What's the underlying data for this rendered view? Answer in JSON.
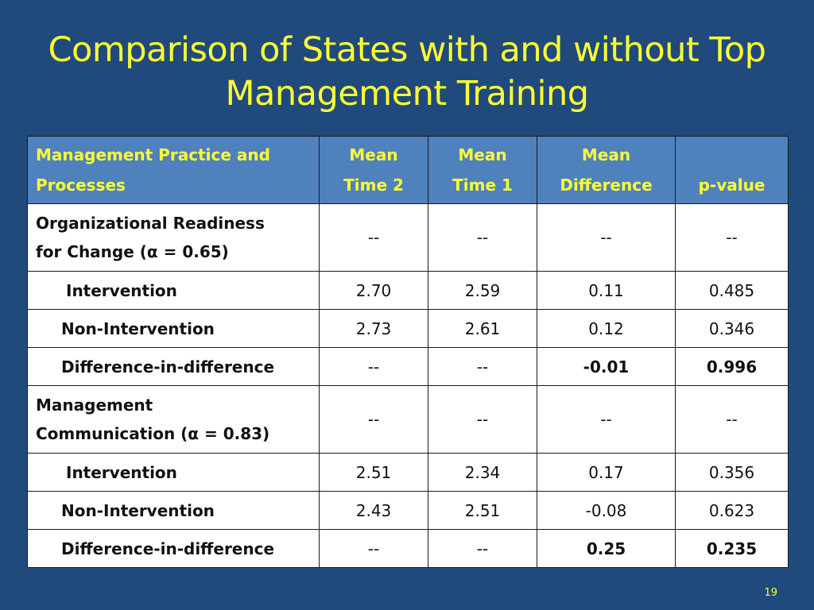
{
  "slide": {
    "title_line1": "Comparison of States with and without Top",
    "title_line2": "Management Training",
    "page_number": "19"
  },
  "table": {
    "headers": {
      "practice_line1": "Management Practice and",
      "practice_line2": "Processes",
      "time2_line1": "Mean",
      "time2_line2": "Time 2",
      "time1_line1": "Mean",
      "time1_line2": "Time 1",
      "diff_line1": "Mean",
      "diff_line2": "Difference",
      "pvalue": "p-value"
    },
    "sections": [
      {
        "title_line1": "Organizational Readiness",
        "title_line2": "for Change (α = 0.65)",
        "values": [
          "--",
          "--",
          "--",
          "--"
        ],
        "rows": [
          {
            "label": "Intervention",
            "time2": "2.70",
            "time1": "2.59",
            "diff": "0.11",
            "p": "0.485"
          },
          {
            "label": "Non-Intervention",
            "time2": "2.73",
            "time1": "2.61",
            "diff": "0.12",
            "p": "0.346"
          },
          {
            "label": "Difference-in-difference",
            "time2": "--",
            "time1": "--",
            "diff": "-0.01",
            "p": "0.996"
          }
        ]
      },
      {
        "title_line1": "Management",
        "title_line2": "Communication (α = 0.83)",
        "values": [
          "--",
          "--",
          "--",
          "--"
        ],
        "rows": [
          {
            "label": "Intervention",
            "time2": "2.51",
            "time1": "2.34",
            "diff": "0.17",
            "p": "0.356"
          },
          {
            "label": "Non-Intervention",
            "time2": "2.43",
            "time1": "2.51",
            "diff": "-0.08",
            "p": "0.623"
          },
          {
            "label": "Difference-in-difference",
            "time2": "--",
            "time1": "--",
            "diff": "0.25",
            "p": "0.235"
          }
        ]
      }
    ]
  },
  "colors": {
    "background": "#214a7c",
    "title": "#ffff33",
    "header_fill": "#4f81bd"
  }
}
